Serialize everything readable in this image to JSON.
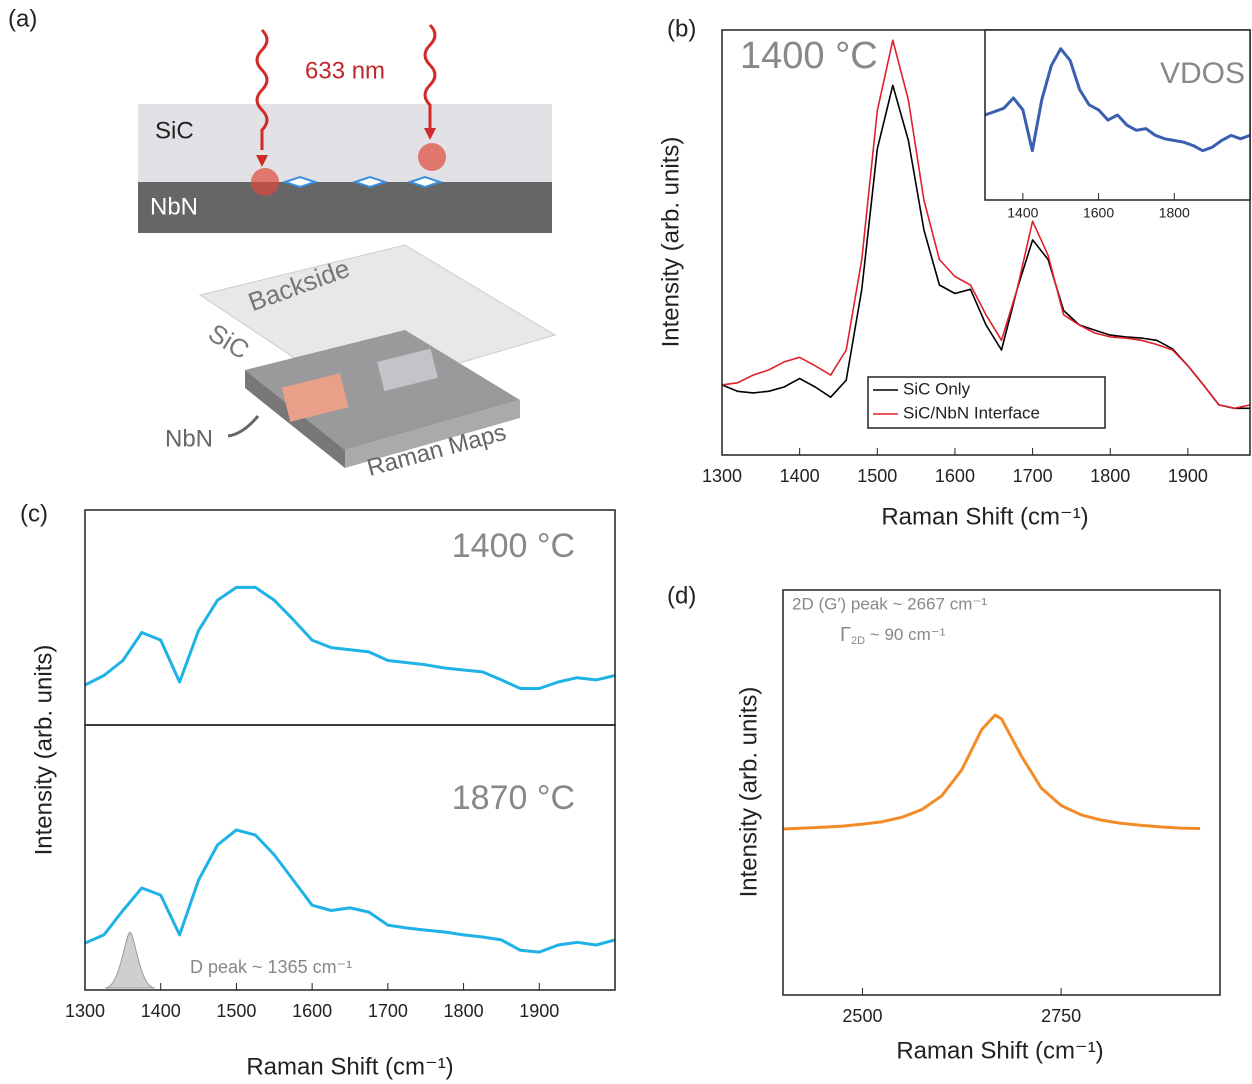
{
  "diagram": {
    "panel_label": "(a)",
    "wavelength": "633 nm",
    "layer_top": "SiC",
    "layer_bottom": "NbN",
    "backside": "Backside",
    "block_sic": "SiC",
    "block_nbn": "NbN",
    "maps": "Raman Maps"
  },
  "chart_data": [
    {
      "type": "line",
      "panel_label": "(b)",
      "xlabel": "Raman Shift (cm⁻¹)",
      "ylabel": "Intensity (arb. units)",
      "annotations": [
        "1400 °C"
      ],
      "xlim": [
        1300,
        1980
      ],
      "ylim": [
        0,
        100
      ],
      "xticks": [
        1300,
        1400,
        1500,
        1600,
        1700,
        1800,
        1900
      ],
      "x": [
        1300,
        1320,
        1340,
        1360,
        1380,
        1400,
        1420,
        1440,
        1460,
        1480,
        1500,
        1520,
        1540,
        1560,
        1580,
        1600,
        1620,
        1640,
        1660,
        1680,
        1700,
        1720,
        1740,
        1760,
        1780,
        1800,
        1820,
        1840,
        1860,
        1880,
        1900,
        1920,
        1940,
        1960,
        1980
      ],
      "series": [
        {
          "name": "SiC Only",
          "color": "#000000",
          "values": [
            16.5,
            15,
            14.6,
            15,
            16,
            18,
            16,
            13.6,
            17.6,
            39,
            72,
            87,
            74,
            53,
            40,
            38,
            39,
            30.6,
            24.7,
            39,
            50.6,
            46,
            34,
            30.6,
            29.4,
            28.2,
            27.8,
            27.5,
            27,
            25,
            21,
            16.5,
            11.8,
            11,
            11
          ]
        },
        {
          "name": "SiC/NbN Interface",
          "color": "#e0202a",
          "values": [
            16.5,
            17,
            18.8,
            20,
            21.9,
            23,
            21,
            18.8,
            24.7,
            46,
            81,
            97.6,
            83.5,
            60,
            46,
            42,
            40,
            33,
            27,
            39,
            55,
            47,
            33,
            30.6,
            28.7,
            27.8,
            27.5,
            27,
            26,
            24.7,
            21,
            16.5,
            11.8,
            11,
            11.8
          ]
        }
      ],
      "legend": "bottom"
    },
    {
      "type": "line",
      "annotations": [
        "VDOS"
      ],
      "xlim": [
        1300,
        2000
      ],
      "ylim": [
        0,
        100
      ],
      "xticks": [
        1400,
        1600,
        1800
      ],
      "x": [
        1300,
        1325,
        1350,
        1375,
        1400,
        1425,
        1450,
        1475,
        1500,
        1525,
        1550,
        1575,
        1600,
        1625,
        1650,
        1675,
        1700,
        1725,
        1750,
        1775,
        1800,
        1825,
        1850,
        1875,
        1900,
        1925,
        1950,
        1975,
        2000
      ],
      "series": [
        {
          "color": "#3a5fb0",
          "values": [
            50,
            52,
            54,
            60,
            53,
            29,
            59,
            79,
            89,
            82,
            65,
            56,
            53,
            47,
            50,
            44,
            41,
            42,
            38,
            36,
            35,
            34,
            32,
            29,
            31,
            35,
            38,
            36,
            38
          ]
        }
      ]
    },
    {
      "type": "line",
      "panel_label": "(c)",
      "ylabel": "Intensity (arb. units)",
      "annotations": [
        "1400 °C"
      ],
      "xlim": [
        1300,
        2000
      ],
      "ylim": [
        0,
        100
      ],
      "x": [
        1300,
        1325,
        1350,
        1375,
        1400,
        1425,
        1450,
        1475,
        1500,
        1525,
        1550,
        1575,
        1600,
        1625,
        1650,
        1675,
        1700,
        1725,
        1750,
        1775,
        1800,
        1825,
        1850,
        1875,
        1900,
        1925,
        1950,
        1975,
        2000
      ],
      "series": [
        {
          "color": "#1fb2e6",
          "values": [
            18.6,
            23,
            30,
            43,
            39.5,
            20,
            44,
            58,
            64,
            64,
            58,
            49,
            39.5,
            36,
            35,
            34,
            30,
            29,
            28,
            26.5,
            25.6,
            24.7,
            21,
            17,
            17,
            20,
            22,
            21,
            23
          ]
        }
      ]
    },
    {
      "type": "line",
      "xlabel": "Raman Shift (cm⁻¹)",
      "annotations": [
        "1870 °C",
        "D peak ~ 1365 cm⁻¹"
      ],
      "xlim": [
        1300,
        2000
      ],
      "ylim": [
        0,
        100
      ],
      "xticks": [
        1300,
        1400,
        1500,
        1600,
        1700,
        1800,
        1900
      ],
      "x": [
        1300,
        1325,
        1350,
        1375,
        1400,
        1425,
        1450,
        1475,
        1500,
        1525,
        1550,
        1575,
        1600,
        1625,
        1650,
        1675,
        1700,
        1725,
        1750,
        1775,
        1800,
        1825,
        1850,
        1875,
        1900,
        1925,
        1950,
        1975,
        2000
      ],
      "series": [
        {
          "color": "#1fb2e6",
          "values": [
            17.7,
            20.8,
            30,
            38.5,
            35.8,
            20.8,
            41.5,
            54.7,
            60.4,
            58.5,
            51,
            41.5,
            32,
            30,
            31,
            29.4,
            24.5,
            23.4,
            22.6,
            21.9,
            20.8,
            20,
            18.9,
            15,
            14.3,
            17,
            18,
            17,
            18.9
          ]
        }
      ]
    },
    {
      "type": "line",
      "panel_label": "(d)",
      "xlabel": "Raman Shift (cm⁻¹)",
      "ylabel": "Intensity (arb. units)",
      "annotations": [
        "2D (G′) peak ~ 2667 cm⁻¹",
        {
          "symbol": "Γ",
          "subscript": "2D",
          "text": " ~ 90 cm⁻¹"
        }
      ],
      "xlim": [
        2400,
        2950
      ],
      "ylim": [
        0,
        100
      ],
      "xticks": [
        2500,
        2750
      ],
      "x": [
        2400,
        2425,
        2450,
        2475,
        2500,
        2525,
        2550,
        2575,
        2600,
        2625,
        2650,
        2667,
        2675,
        2700,
        2725,
        2750,
        2775,
        2800,
        2825,
        2850,
        2875,
        2900,
        2925
      ],
      "series": [
        {
          "color": "#f28c28",
          "values": [
            41,
            41.2,
            41.4,
            41.7,
            42.2,
            42.8,
            43.9,
            45.8,
            49.2,
            55.6,
            65.5,
            69.1,
            68.2,
            59,
            51.1,
            46.8,
            44.5,
            43.2,
            42.4,
            41.9,
            41.5,
            41.2,
            41.1
          ]
        }
      ]
    }
  ]
}
